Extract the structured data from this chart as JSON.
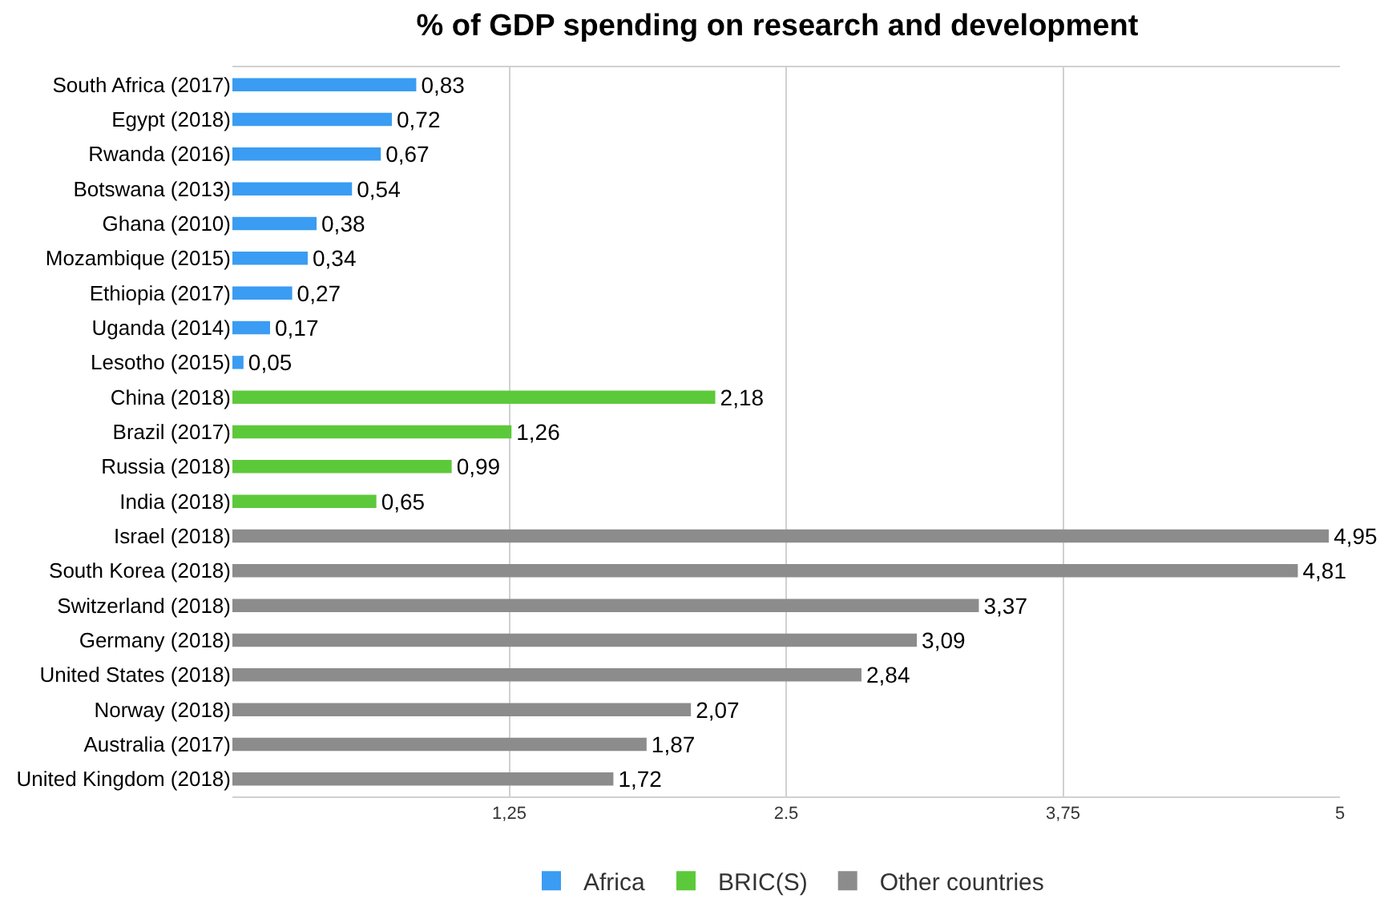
{
  "chart_data": {
    "type": "bar",
    "orientation": "horizontal",
    "title": "% of GDP spending on research and development",
    "categories": [
      "South Africa (2017)",
      "Egypt (2018)",
      "Rwanda (2016)",
      "Botswana (2013)",
      "Ghana (2010)",
      "Mozambique (2015)",
      "Ethiopia (2017)",
      "Uganda (2014)",
      "Lesotho (2015)",
      "China (2018)",
      "Brazil (2017)",
      "Russia (2018)",
      "India (2018)",
      "Israel (2018)",
      "South Korea (2018)",
      "Switzerland (2018)",
      "Germany (2018)",
      "United States (2018)",
      "Norway (2018)",
      "Australia (2017)",
      "United Kingdom (2018)"
    ],
    "series": [
      {
        "name": "Africa",
        "color": "#3a9cf2",
        "values": [
          0.83,
          0.72,
          0.67,
          0.54,
          0.38,
          0.34,
          0.27,
          0.17,
          0.05,
          null,
          null,
          null,
          null,
          null,
          null,
          null,
          null,
          null,
          null,
          null,
          null
        ],
        "value_labels": [
          "0,83",
          "0,72",
          "0,67",
          "0,54",
          "0,38",
          "0,34",
          "0,27",
          "0,17",
          "0,05",
          null,
          null,
          null,
          null,
          null,
          null,
          null,
          null,
          null,
          null,
          null,
          null
        ]
      },
      {
        "name": "BRIC(S)",
        "color": "#5cc93a",
        "values": [
          null,
          null,
          null,
          null,
          null,
          null,
          null,
          null,
          null,
          2.18,
          1.26,
          0.99,
          0.65,
          null,
          null,
          null,
          null,
          null,
          null,
          null,
          null
        ],
        "value_labels": [
          null,
          null,
          null,
          null,
          null,
          null,
          null,
          null,
          null,
          "2,18",
          "1,26",
          "0,99",
          "0,65",
          null,
          null,
          null,
          null,
          null,
          null,
          null,
          null
        ]
      },
      {
        "name": "Other countries",
        "color": "#8c8c8c",
        "values": [
          null,
          null,
          null,
          null,
          null,
          null,
          null,
          null,
          null,
          null,
          null,
          null,
          null,
          4.95,
          4.81,
          3.37,
          3.09,
          2.84,
          2.07,
          1.87,
          1.72
        ],
        "value_labels": [
          null,
          null,
          null,
          null,
          null,
          null,
          null,
          null,
          null,
          null,
          null,
          null,
          null,
          "4,95",
          "4,81",
          "3,37",
          "3,09",
          "2,84",
          "2,07",
          "1,87",
          "1,72"
        ]
      }
    ],
    "xlim": [
      0,
      5
    ],
    "xticks": [
      {
        "value": 1.25,
        "label": "1,25"
      },
      {
        "value": 2.5,
        "label": "2.5"
      },
      {
        "value": 3.75,
        "label": "3,75"
      },
      {
        "value": 5,
        "label": "5"
      }
    ],
    "grid": "x",
    "legend": "bottom"
  }
}
